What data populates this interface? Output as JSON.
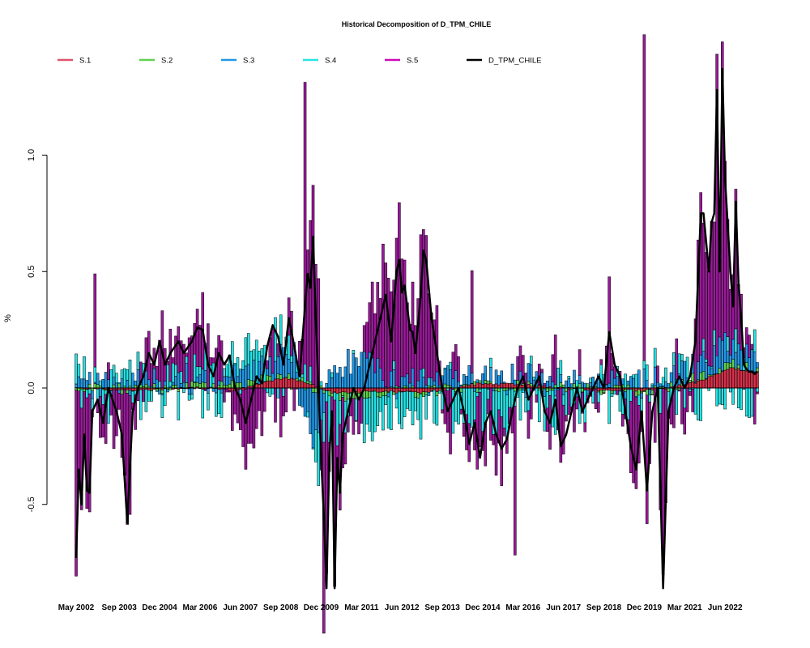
{
  "chart_data": {
    "type": "bar",
    "title": "Historical Decomposition of D_TPM_CHILE",
    "ylabel": "%",
    "xlabel": "",
    "ylim": [
      -0.85,
      1.4
    ],
    "y_ticks": [
      -0.5,
      0.0,
      0.5,
      1.0
    ],
    "y_tick_labels": [
      "-0.5",
      "0.0",
      "0.5",
      "1.0"
    ],
    "x_tick_labels": [
      "May 2002",
      "Sep 2003",
      "Dec 2004",
      "Mar 2006",
      "Jun 2007",
      "Sep 2008",
      "Dec 2009",
      "Mar 2011",
      "Jun 2012",
      "Sep 2013",
      "Dec 2014",
      "Mar 2016",
      "Jun 2017",
      "Sep 2018",
      "Dec 2019",
      "Mar 2021",
      "Jun 2022"
    ],
    "x_tick_month_index": [
      0,
      16,
      31,
      46,
      61,
      76,
      91,
      106,
      121,
      136,
      151,
      166,
      181,
      196,
      211,
      226,
      241
    ],
    "start": "2002-05",
    "end": "2023-06",
    "legend_position": "top",
    "grid": false,
    "series": [
      {
        "name": "S.1",
        "color": "#D7304A",
        "legend_color": "#DF536B",
        "anchors": [
          [
            0,
            0.0
          ],
          [
            20,
            -0.01
          ],
          [
            45,
            0.0
          ],
          [
            60,
            -0.01
          ],
          [
            72,
            0.03
          ],
          [
            78,
            0.045
          ],
          [
            86,
            0.02
          ],
          [
            95,
            -0.02
          ],
          [
            112,
            -0.015
          ],
          [
            130,
            -0.02
          ],
          [
            140,
            0.0
          ],
          [
            150,
            0.02
          ],
          [
            165,
            0.015
          ],
          [
            180,
            0.0
          ],
          [
            195,
            -0.01
          ],
          [
            210,
            -0.01
          ],
          [
            220,
            0.0
          ],
          [
            232,
            0.03
          ],
          [
            243,
            0.085
          ],
          [
            253,
            0.07
          ]
        ]
      },
      {
        "name": "S.2",
        "color": "#61D04F",
        "legend_color": "#61D04F",
        "anchors": [
          [
            0,
            0.0
          ],
          [
            30,
            0.0
          ],
          [
            70,
            0.02
          ],
          [
            85,
            0.0
          ],
          [
            100,
            -0.02
          ],
          [
            140,
            0.0
          ],
          [
            200,
            0.0
          ],
          [
            215,
            -0.01
          ],
          [
            230,
            0.02
          ],
          [
            253,
            0.02
          ]
        ]
      },
      {
        "name": "S.3",
        "color": "#2297E6",
        "legend_color": "#2297E6",
        "anchors": [
          [
            0,
            0.0
          ],
          [
            15,
            0.02
          ],
          [
            30,
            0.04
          ],
          [
            55,
            0.02
          ],
          [
            70,
            0.05
          ],
          [
            80,
            0.12
          ],
          [
            88,
            -0.25
          ],
          [
            95,
            0.1
          ],
          [
            108,
            0.12
          ],
          [
            118,
            0.02
          ],
          [
            140,
            0.04
          ],
          [
            160,
            0.03
          ],
          [
            190,
            0.02
          ],
          [
            220,
            0.03
          ],
          [
            240,
            0.08
          ],
          [
            253,
            0.03
          ]
        ]
      },
      {
        "name": "S.4",
        "color": "#28E2E5",
        "legend_color": "#28E2E5",
        "anchors": [
          [
            0,
            0.0
          ],
          [
            20,
            0.0
          ],
          [
            50,
            0.0
          ],
          [
            80,
            0.1
          ],
          [
            90,
            -0.1
          ],
          [
            253,
            0.0
          ]
        ]
      },
      {
        "name": "S.5",
        "color": "#991A99",
        "legend_color": "#CD0BBC",
        "anchors": [
          [
            0,
            0.0
          ],
          [
            253,
            0.0
          ]
        ]
      },
      {
        "name": "D_TPM_CHILE",
        "color": "#000000",
        "legend_color": "#000000",
        "anchors": [
          [
            0,
            -0.73
          ],
          [
            1,
            -0.35
          ],
          [
            2,
            -0.5
          ],
          [
            3,
            -0.2
          ],
          [
            4,
            -0.44
          ],
          [
            5,
            -0.45
          ],
          [
            6,
            -0.1
          ],
          [
            8,
            -0.05
          ],
          [
            10,
            -0.15
          ],
          [
            12,
            0.0
          ],
          [
            15,
            -0.1
          ],
          [
            17,
            -0.2
          ],
          [
            19,
            -0.58
          ],
          [
            21,
            -0.1
          ],
          [
            23,
            0.0
          ],
          [
            25,
            0.05
          ],
          [
            27,
            0.15
          ],
          [
            29,
            0.1
          ],
          [
            31,
            0.2
          ],
          [
            33,
            0.1
          ],
          [
            35,
            0.15
          ],
          [
            38,
            0.2
          ],
          [
            40,
            0.15
          ],
          [
            43,
            0.2
          ],
          [
            45,
            0.26
          ],
          [
            47,
            0.25
          ],
          [
            49,
            0.1
          ],
          [
            51,
            0.05
          ],
          [
            53,
            0.15
          ],
          [
            55,
            0.1
          ],
          [
            57,
            0.14
          ],
          [
            59,
            0.0
          ],
          [
            61,
            -0.05
          ],
          [
            63,
            -0.15
          ],
          [
            65,
            -0.05
          ],
          [
            67,
            0.05
          ],
          [
            69,
            0.02
          ],
          [
            71,
            0.18
          ],
          [
            73,
            0.27
          ],
          [
            75,
            0.22
          ],
          [
            77,
            0.1
          ],
          [
            79,
            0.3
          ],
          [
            81,
            0.18
          ],
          [
            83,
            0.05
          ],
          [
            85,
            0.35
          ],
          [
            86,
            0.49
          ],
          [
            87,
            0.43
          ],
          [
            88,
            0.65
          ],
          [
            89,
            0.3
          ],
          [
            90,
            0.0
          ],
          [
            91,
            -0.3
          ],
          [
            92,
            -0.55
          ],
          [
            93,
            -0.86
          ],
          [
            94,
            -0.3
          ],
          [
            95,
            -0.1
          ],
          [
            96,
            -0.86
          ],
          [
            97,
            -0.3
          ],
          [
            98,
            -0.45
          ],
          [
            99,
            -0.2
          ],
          [
            101,
            -0.1
          ],
          [
            103,
            0.0
          ],
          [
            105,
            -0.05
          ],
          [
            107,
            0.0
          ],
          [
            109,
            0.1
          ],
          [
            111,
            0.2
          ],
          [
            113,
            0.3
          ],
          [
            115,
            0.4
          ],
          [
            117,
            0.2
          ],
          [
            119,
            0.5
          ],
          [
            120,
            0.55
          ],
          [
            121,
            0.41
          ],
          [
            122,
            0.44
          ],
          [
            124,
            0.25
          ],
          [
            125,
            0.24
          ],
          [
            126,
            0.15
          ],
          [
            128,
            0.4
          ],
          [
            129,
            0.59
          ],
          [
            130,
            0.55
          ],
          [
            132,
            0.3
          ],
          [
            134,
            0.15
          ],
          [
            136,
            0.0
          ],
          [
            138,
            -0.1
          ],
          [
            140,
            -0.05
          ],
          [
            142,
            0.0
          ],
          [
            144,
            -0.1
          ],
          [
            146,
            -0.24
          ],
          [
            148,
            -0.15
          ],
          [
            150,
            -0.3
          ],
          [
            152,
            -0.15
          ],
          [
            154,
            -0.1
          ],
          [
            156,
            -0.2
          ],
          [
            158,
            -0.26
          ],
          [
            160,
            -0.22
          ],
          [
            162,
            -0.1
          ],
          [
            164,
            0.0
          ],
          [
            166,
            0.05
          ],
          [
            168,
            -0.05
          ],
          [
            170,
            0.0
          ],
          [
            172,
            0.05
          ],
          [
            174,
            -0.1
          ],
          [
            176,
            -0.15
          ],
          [
            178,
            -0.05
          ],
          [
            180,
            -0.25
          ],
          [
            182,
            -0.2
          ],
          [
            184,
            -0.1
          ],
          [
            186,
            0.0
          ],
          [
            188,
            -0.1
          ],
          [
            190,
            -0.05
          ],
          [
            192,
            0.0
          ],
          [
            194,
            0.05
          ],
          [
            196,
            0.0
          ],
          [
            198,
            0.24
          ],
          [
            200,
            0.1
          ],
          [
            202,
            0.05
          ],
          [
            204,
            -0.1
          ],
          [
            206,
            -0.25
          ],
          [
            208,
            -0.35
          ],
          [
            210,
            -0.1
          ],
          [
            212,
            -0.44
          ],
          [
            214,
            -0.1
          ],
          [
            216,
            0.0
          ],
          [
            218,
            -0.86
          ],
          [
            220,
            -0.1
          ],
          [
            222,
            0.0
          ],
          [
            224,
            0.05
          ],
          [
            226,
            0.0
          ],
          [
            228,
            0.05
          ],
          [
            230,
            0.2
          ],
          [
            232,
            0.75
          ],
          [
            233,
            0.75
          ],
          [
            235,
            0.5
          ],
          [
            236,
            0.71
          ],
          [
            237,
            0.75
          ],
          [
            238,
            1.28
          ],
          [
            239,
            0.5
          ],
          [
            240,
            1.37
          ],
          [
            241,
            0.9
          ],
          [
            242,
            0.7
          ],
          [
            243,
            0.5
          ],
          [
            244,
            0.35
          ],
          [
            245,
            0.8
          ],
          [
            246,
            0.45
          ],
          [
            247,
            0.3
          ],
          [
            248,
            0.1
          ],
          [
            249,
            0.08
          ],
          [
            250,
            0.07
          ],
          [
            251,
            0.07
          ],
          [
            252,
            0.06
          ],
          [
            253,
            0.07
          ]
        ]
      }
    ],
    "notable_bars": [
      {
        "series": "S.5",
        "month_index": 85,
        "value": 1.21
      },
      {
        "series": "S.5",
        "month_index": 211,
        "value": 1.4
      },
      {
        "series": "S.5",
        "month_index": 92,
        "value": -0.82
      },
      {
        "series": "S.5",
        "month_index": 163,
        "value": -0.64
      },
      {
        "series": "S.5",
        "month_index": 7,
        "value": 0.4
      },
      {
        "series": "S.5",
        "month_index": 147,
        "value": 0.44
      }
    ]
  }
}
